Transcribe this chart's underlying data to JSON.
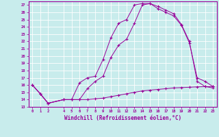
{
  "xlabel": "Windchill (Refroidissement éolien,°C)",
  "ylabel": "",
  "bg_color": "#c8ecec",
  "line_color": "#990099",
  "grid_color": "#ffffff",
  "xlim": [
    -0.5,
    23.5
  ],
  "ylim": [
    13,
    27.5
  ],
  "yticks": [
    13,
    14,
    15,
    16,
    17,
    18,
    19,
    20,
    21,
    22,
    23,
    24,
    25,
    26,
    27
  ],
  "xticks": [
    0,
    1,
    2,
    4,
    5,
    6,
    7,
    8,
    9,
    10,
    11,
    12,
    13,
    14,
    15,
    16,
    17,
    18,
    19,
    20,
    21,
    22,
    23
  ],
  "line1_x": [
    0,
    1,
    2,
    4,
    5,
    6,
    7,
    8,
    9,
    10,
    11,
    12,
    13,
    14,
    15,
    16,
    17,
    18,
    19,
    20,
    21,
    22,
    23
  ],
  "line1_y": [
    16.0,
    14.8,
    13.5,
    14.0,
    14.0,
    14.0,
    14.0,
    14.1,
    14.2,
    14.4,
    14.6,
    14.8,
    15.0,
    15.2,
    15.3,
    15.4,
    15.5,
    15.6,
    15.65,
    15.7,
    15.75,
    15.78,
    15.8
  ],
  "line2_x": [
    0,
    1,
    2,
    4,
    5,
    6,
    7,
    8,
    9,
    10,
    11,
    12,
    13,
    14,
    15,
    16,
    17,
    18,
    19,
    20,
    21,
    22,
    23
  ],
  "line2_y": [
    16.0,
    14.8,
    13.5,
    14.0,
    14.0,
    16.3,
    17.0,
    17.2,
    19.5,
    22.5,
    24.5,
    25.0,
    27.0,
    27.2,
    27.2,
    26.8,
    26.3,
    25.8,
    24.3,
    22.0,
    16.5,
    15.8,
    15.6
  ],
  "line3_x": [
    0,
    1,
    2,
    4,
    5,
    6,
    7,
    8,
    9,
    10,
    11,
    12,
    13,
    14,
    15,
    16,
    17,
    18,
    19,
    20,
    21,
    22,
    23
  ],
  "line3_y": [
    16.0,
    14.8,
    13.5,
    14.0,
    14.0,
    14.0,
    15.5,
    16.5,
    17.2,
    19.8,
    21.5,
    22.3,
    24.5,
    27.0,
    27.2,
    26.5,
    26.0,
    25.5,
    24.2,
    21.8,
    17.0,
    16.5,
    15.8
  ]
}
